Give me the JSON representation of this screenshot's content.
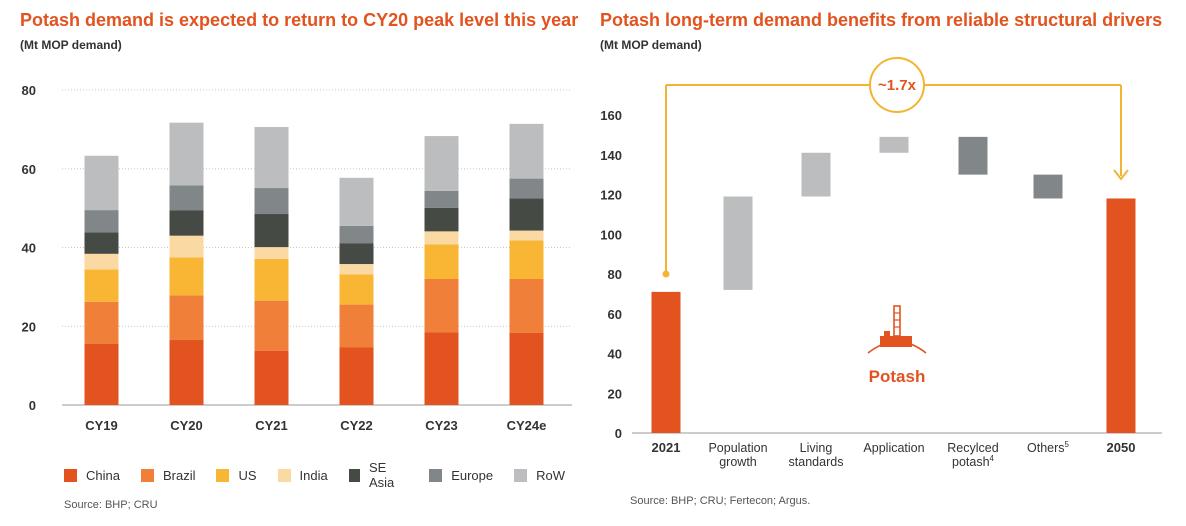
{
  "left_panel": {
    "title": "Potash demand is expected to return to CY20 peak level this year",
    "subtitle": "(Mt MOP demand)",
    "source": "Source: BHP; CRU"
  },
  "right_panel": {
    "title": "Potash long-term demand benefits from reliable structural drivers",
    "subtitle": "(Mt MOP demand)",
    "source": "Source: BHP; CRU; Fertecon; Argus.",
    "multiplier": "~1.7x",
    "icon_label": "Potash"
  },
  "chart_data": [
    {
      "type": "bar",
      "stacked": true,
      "title": "Potash demand is expected to return to CY20 peak level this year",
      "ylabel": "(Mt MOP demand)",
      "xlabel": "",
      "ylim": [
        0,
        80
      ],
      "yticks": [
        0,
        20,
        40,
        60,
        80
      ],
      "categories": [
        "CY19",
        "CY20",
        "CY21",
        "CY22",
        "CY23",
        "CY24e"
      ],
      "series": [
        {
          "name": "China",
          "color": "#e2531f",
          "values": [
            15.5,
            16.5,
            13.8,
            14.6,
            18.5,
            18.3
          ]
        },
        {
          "name": "Brazil",
          "color": "#f07f3a",
          "values": [
            10.7,
            11.3,
            12.7,
            10.9,
            13.5,
            13.7
          ]
        },
        {
          "name": "US",
          "color": "#f8b634",
          "values": [
            8.2,
            9.7,
            10.6,
            7.7,
            8.8,
            9.8
          ]
        },
        {
          "name": "India",
          "color": "#fbd9a3",
          "values": [
            4.0,
            5.5,
            3.0,
            2.6,
            3.3,
            2.5
          ]
        },
        {
          "name": "SE Asia",
          "color": "#454a45",
          "values": [
            5.4,
            6.4,
            8.4,
            5.3,
            6.0,
            8.2
          ]
        },
        {
          "name": "Europe",
          "color": "#818688",
          "values": [
            5.7,
            6.4,
            6.6,
            4.4,
            4.3,
            5.0
          ]
        },
        {
          "name": "RoW",
          "color": "#bcbdbf",
          "values": [
            13.8,
            15.9,
            15.5,
            12.2,
            13.9,
            13.9
          ]
        }
      ]
    },
    {
      "type": "waterfall",
      "title": "Potash long-term demand benefits from reliable structural drivers",
      "ylabel": "(Mt MOP demand)",
      "xlabel": "",
      "ylim": [
        0,
        160
      ],
      "yticks": [
        0,
        20,
        40,
        60,
        80,
        100,
        120,
        140,
        160
      ],
      "categories": [
        {
          "label": [
            "2021"
          ],
          "sup": ""
        },
        {
          "label": [
            "Population",
            "growth"
          ],
          "sup": ""
        },
        {
          "label": [
            "Living",
            "standards"
          ],
          "sup": ""
        },
        {
          "label": [
            "Application"
          ],
          "sup": ""
        },
        {
          "label": [
            "Recylced",
            "potash"
          ],
          "sup": "4"
        },
        {
          "label": [
            "Others"
          ],
          "sup": "5"
        },
        {
          "label": [
            "2050"
          ],
          "sup": ""
        }
      ],
      "bars": [
        {
          "start": 0,
          "end": 71,
          "color": "#e2531f"
        },
        {
          "start": 72,
          "end": 119,
          "color": "#bcbdbf"
        },
        {
          "start": 119,
          "end": 141,
          "color": "#bcbdbf"
        },
        {
          "start": 141,
          "end": 149,
          "color": "#bcbdbf"
        },
        {
          "start": 149,
          "end": 130,
          "color": "#818688"
        },
        {
          "start": 130,
          "end": 118,
          "color": "#818688"
        },
        {
          "start": 0,
          "end": 118,
          "color": "#e2531f"
        }
      ],
      "annotation": {
        "text": "~1.7x",
        "from": "2021",
        "to": "2050",
        "color": "#f3b431"
      }
    }
  ]
}
